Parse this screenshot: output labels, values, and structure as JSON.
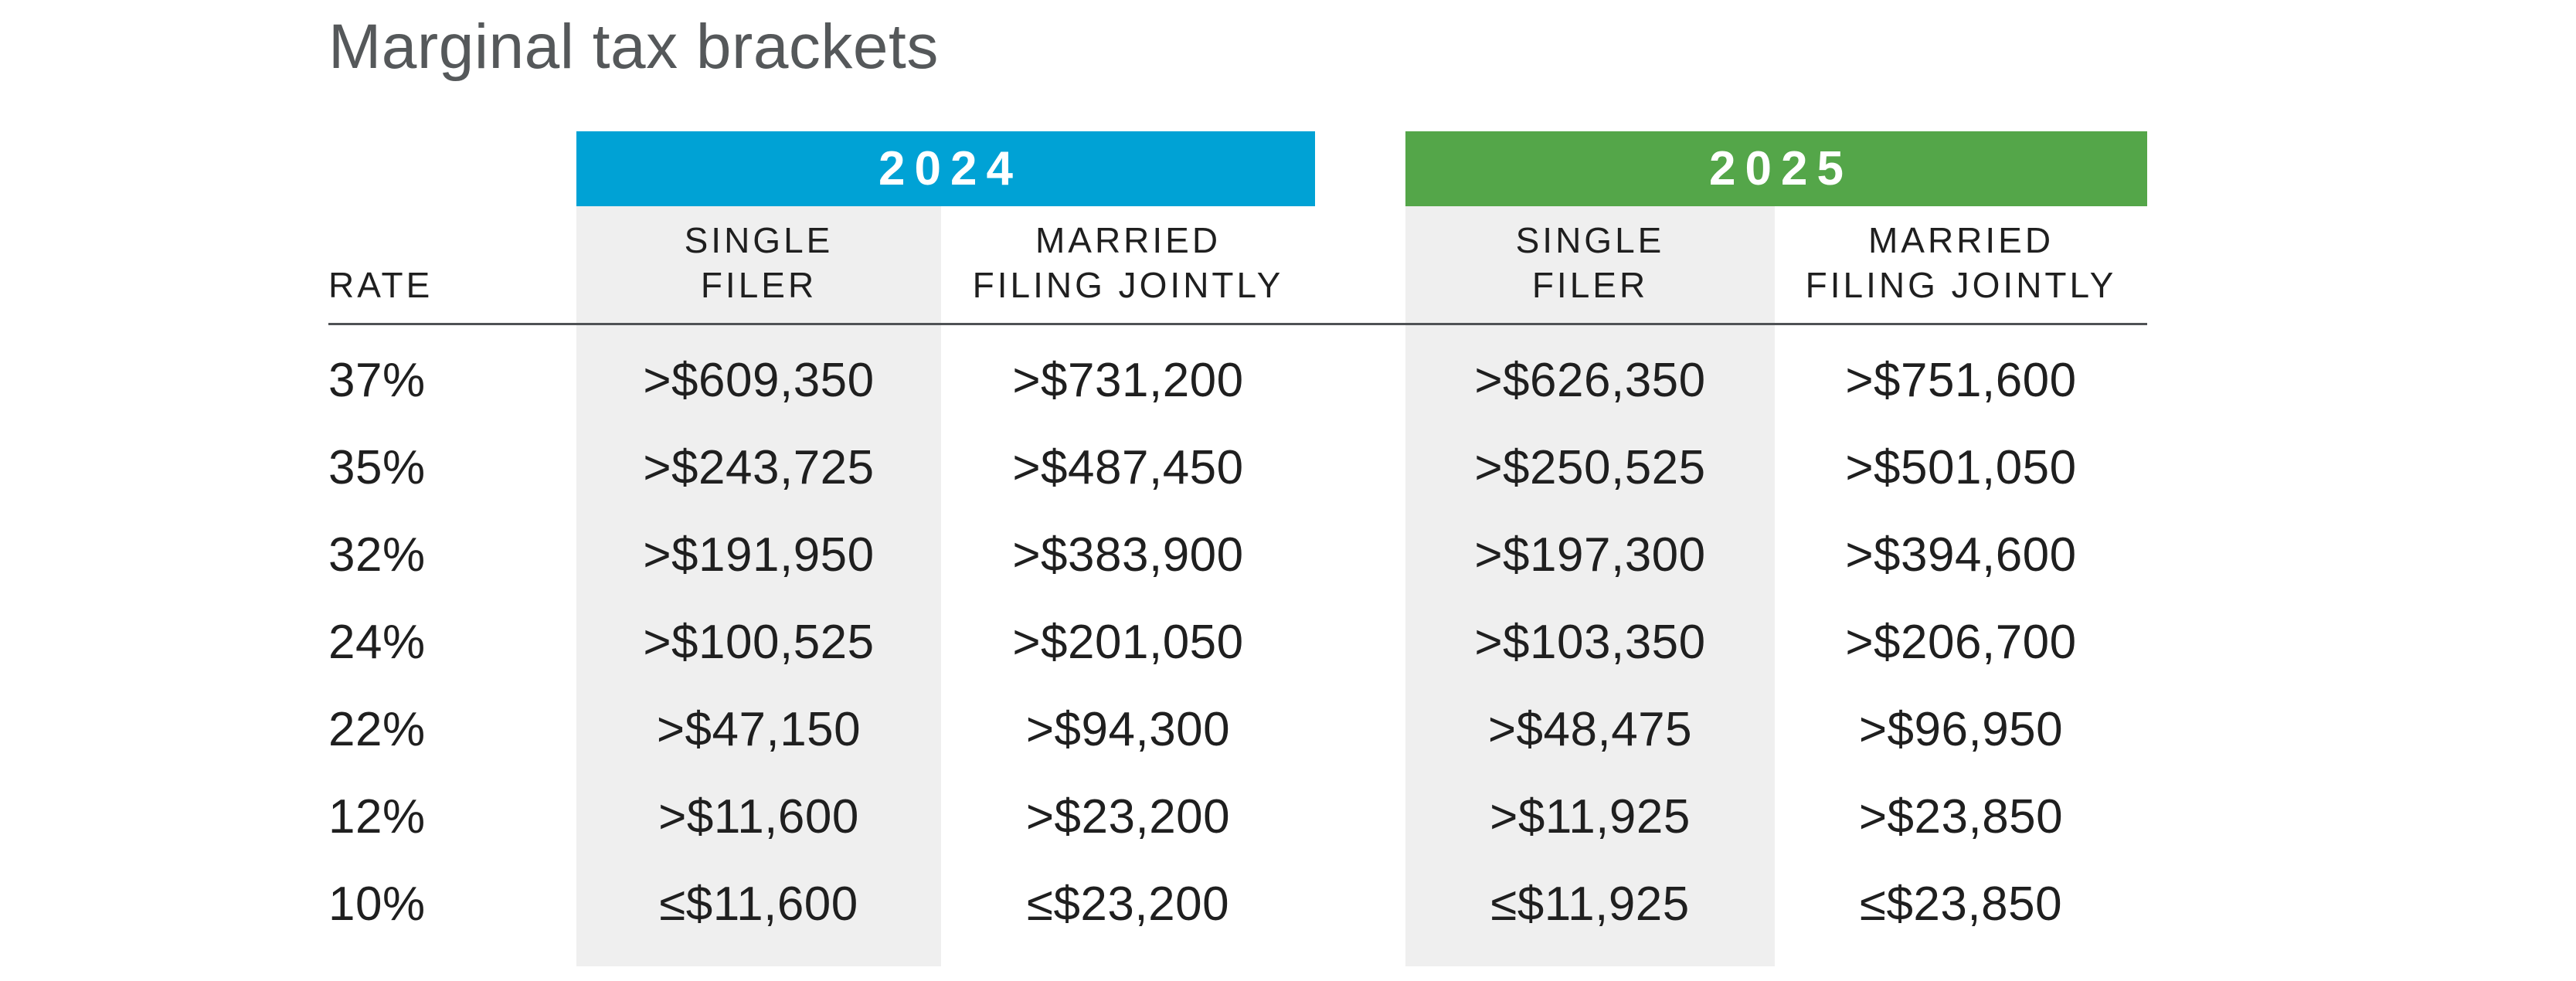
{
  "title": "Marginal tax brackets",
  "colors": {
    "blue": "#00A2D5",
    "green": "#54A649",
    "stripe": "#EFEFEF",
    "rule": "#4F5255",
    "title_text": "#55585A",
    "body_text": "#1F1F1F",
    "year_text": "#FFFFFF"
  },
  "years": [
    {
      "label": "2024"
    },
    {
      "label": "2025"
    }
  ],
  "headers": {
    "rate": "RATE",
    "single_line1": "SINGLE",
    "single_line2": "FILER",
    "married_line1": "MARRIED",
    "married_line2": "FILING JOINTLY"
  },
  "rows": [
    {
      "rate": "37%",
      "single_2024": ">$609,350",
      "married_2024": ">$731,200",
      "single_2025": ">$626,350",
      "married_2025": ">$751,600"
    },
    {
      "rate": "35%",
      "single_2024": ">$243,725",
      "married_2024": ">$487,450",
      "single_2025": ">$250,525",
      "married_2025": ">$501,050"
    },
    {
      "rate": "32%",
      "single_2024": ">$191,950",
      "married_2024": ">$383,900",
      "single_2025": ">$197,300",
      "married_2025": ">$394,600"
    },
    {
      "rate": "24%",
      "single_2024": ">$100,525",
      "married_2024": ">$201,050",
      "single_2025": ">$103,350",
      "married_2025": ">$206,700"
    },
    {
      "rate": "22%",
      "single_2024": ">$47,150",
      "married_2024": ">$94,300",
      "single_2025": ">$48,475",
      "married_2025": ">$96,950"
    },
    {
      "rate": "12%",
      "single_2024": ">$11,600",
      "married_2024": ">$23,200",
      "single_2025": ">$11,925",
      "married_2025": ">$23,850"
    },
    {
      "rate": "10%",
      "single_2024": "≤$11,600",
      "married_2024": "≤$23,200",
      "single_2025": "≤$11,925",
      "married_2025": "≤$23,850"
    }
  ],
  "chart_data": {
    "type": "table",
    "title": "Marginal tax brackets",
    "column_groups": [
      {
        "label": "2024",
        "color": "#00A2D5",
        "columns": [
          "SINGLE FILER",
          "MARRIED FILING JOINTLY"
        ]
      },
      {
        "label": "2025",
        "color": "#54A649",
        "columns": [
          "SINGLE FILER",
          "MARRIED FILING JOINTLY"
        ]
      }
    ],
    "columns": [
      "RATE",
      "2024 SINGLE FILER",
      "2024 MARRIED FILING JOINTLY",
      "2025 SINGLE FILER",
      "2025 MARRIED FILING JOINTLY"
    ],
    "rows": [
      [
        "37%",
        ">$609,350",
        ">$731,200",
        ">$626,350",
        ">$751,600"
      ],
      [
        "35%",
        ">$243,725",
        ">$487,450",
        ">$250,525",
        ">$501,050"
      ],
      [
        "32%",
        ">$191,950",
        ">$383,900",
        ">$197,300",
        ">$394,600"
      ],
      [
        "24%",
        ">$100,525",
        ">$201,050",
        ">$103,350",
        ">$206,700"
      ],
      [
        "22%",
        ">$47,150",
        ">$94,300",
        ">$48,475",
        ">$96,950"
      ],
      [
        "12%",
        ">$11,600",
        ">$23,200",
        ">$11,925",
        ">$23,850"
      ],
      [
        "10%",
        "≤$11,600",
        "≤$23,200",
        "≤$11,925",
        "≤$23,850"
      ]
    ]
  }
}
